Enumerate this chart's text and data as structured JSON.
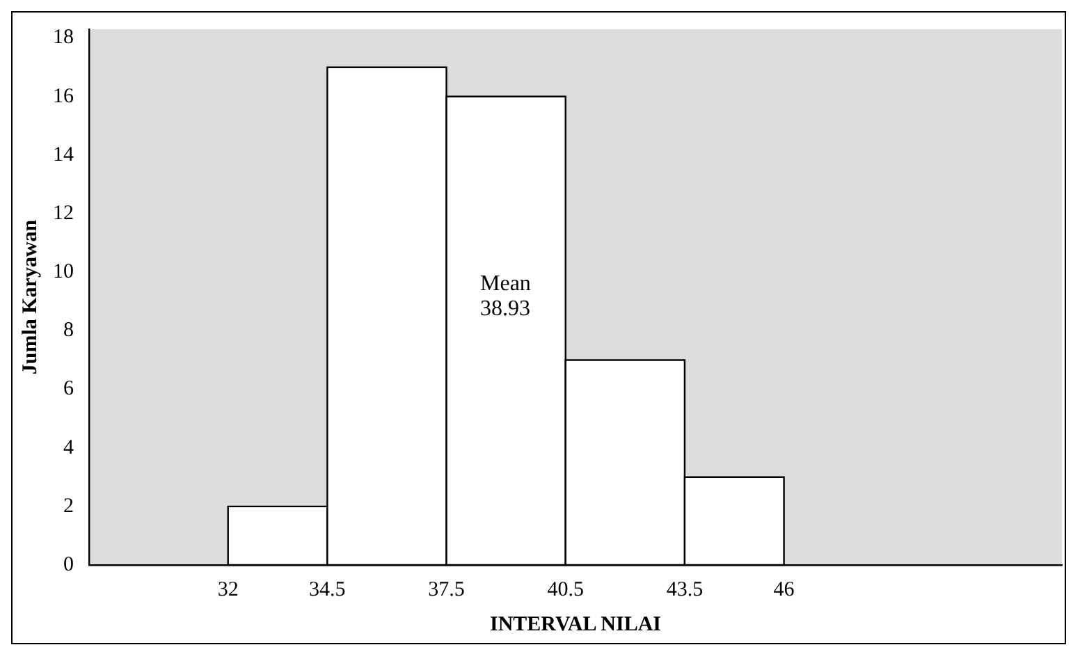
{
  "chart_data": {
    "type": "histogram",
    "xlabel": "INTERVAL NILAI",
    "ylabel": "Jumla Karyawan",
    "bins": [
      32,
      34.5,
      37.5,
      40.5,
      43.5,
      46
    ],
    "values": [
      2,
      17,
      16,
      7,
      3
    ],
    "color": "#ffffff",
    "xlim": [
      28.5,
      53
    ],
    "xticks": [
      32,
      34.5,
      37.5,
      40.5,
      43.5,
      46
    ],
    "ylim": [
      0,
      18.3
    ],
    "yticks": [
      0,
      2,
      4,
      6,
      8,
      10,
      12,
      14,
      16,
      18
    ],
    "grid": false,
    "legend": false,
    "annotations": [
      "Mean\n38.93"
    ]
  }
}
